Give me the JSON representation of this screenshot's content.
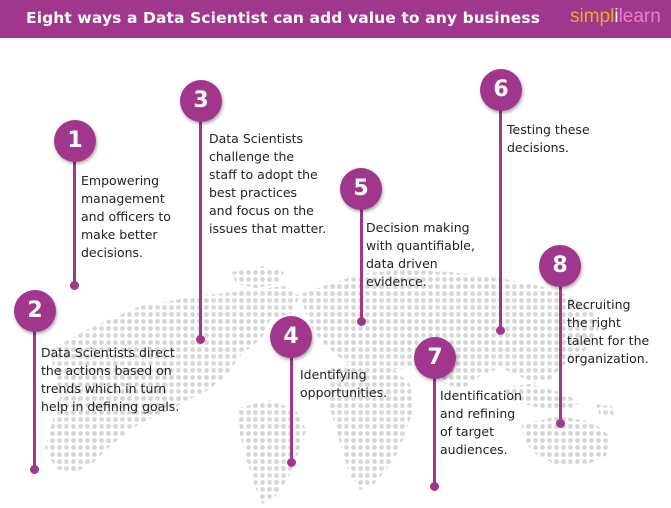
{
  "header": {
    "title": "Eight ways a Data Scientist can add value to any business",
    "logo_part1": "simpl",
    "logo_separator": "i",
    "logo_part2": "learn"
  },
  "colors": {
    "accent": "#a0378d",
    "text": "#222222",
    "map": "#d6d6d6"
  },
  "items": [
    {
      "number": "1",
      "lines": [
        "Empowering",
        "management",
        "and officers to",
        "make better",
        "decisions."
      ]
    },
    {
      "number": "2",
      "lines": [
        "Data Scientists direct",
        "the actions based on",
        "trends which in turn",
        "help in defining goals."
      ]
    },
    {
      "number": "3",
      "lines": [
        "Data Scientists",
        "challenge the",
        "staff to adopt the",
        "best practices",
        "and focus on the",
        "issues that matter."
      ]
    },
    {
      "number": "4",
      "lines": [
        "Identifying",
        "opportunities."
      ]
    },
    {
      "number": "5",
      "lines": [
        "Decision making",
        "with quantifiable,",
        "data driven",
        "evidence."
      ]
    },
    {
      "number": "6",
      "lines": [
        "Testing these",
        "decisions."
      ]
    },
    {
      "number": "7",
      "lines": [
        "Identification",
        "and refining",
        "of target",
        "audiences."
      ]
    },
    {
      "number": "8",
      "lines": [
        "Recruiting",
        "the right",
        "talent for the",
        "organization."
      ]
    }
  ]
}
